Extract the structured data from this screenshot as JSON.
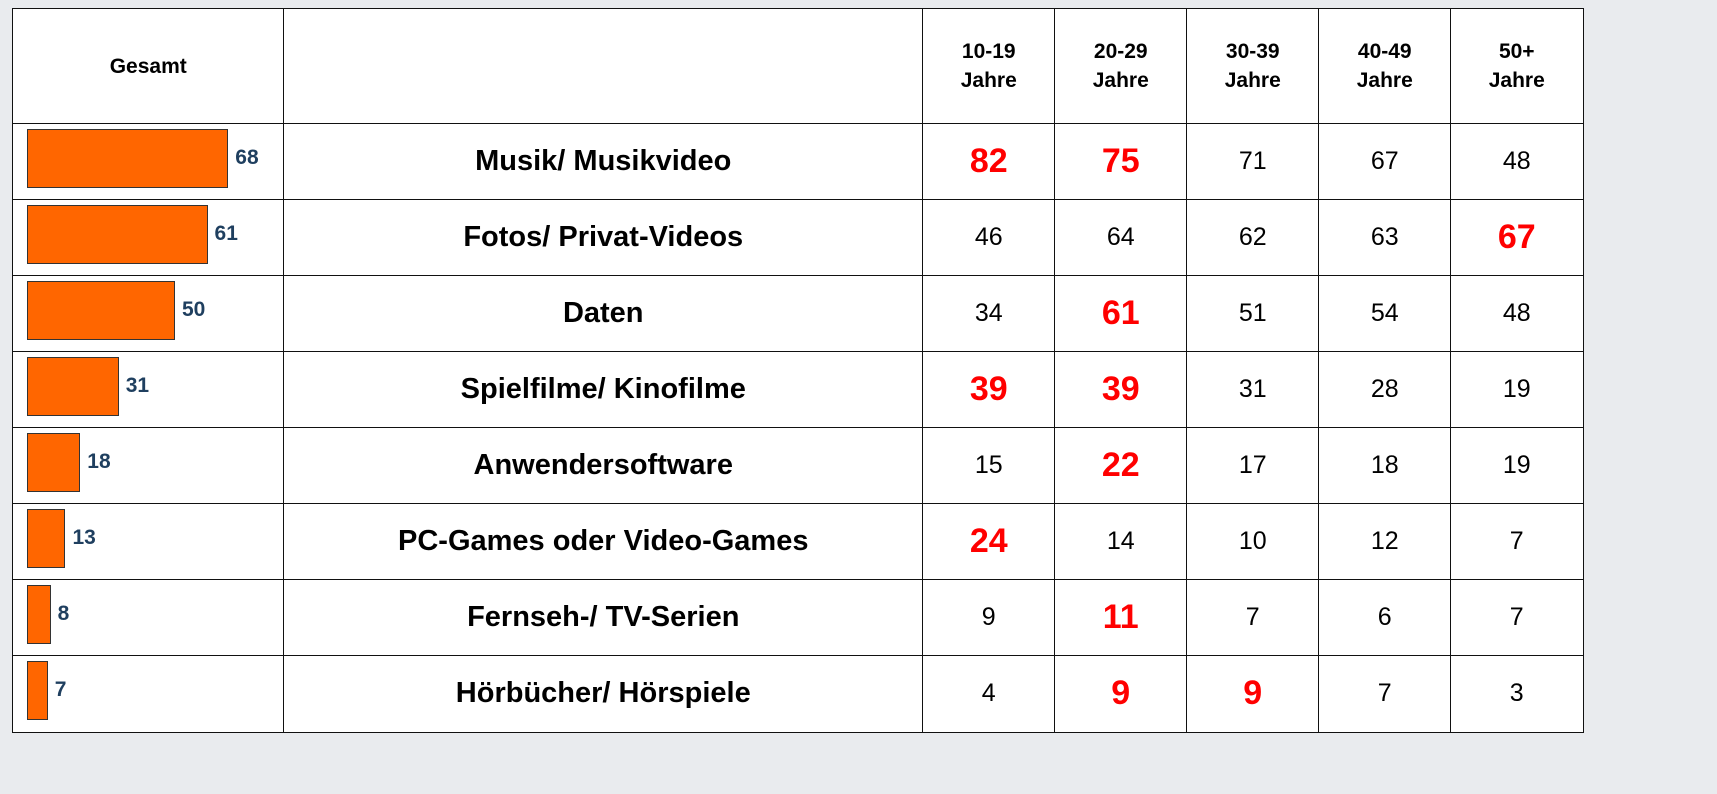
{
  "header": {
    "total": "Gesamt",
    "ages": [
      {
        "range": "10-19",
        "unit": "Jahre"
      },
      {
        "range": "20-29",
        "unit": "Jahre"
      },
      {
        "range": "30-39",
        "unit": "Jahre"
      },
      {
        "range": "40-49",
        "unit": "Jahre"
      },
      {
        "range": "50+",
        "unit": "Jahre"
      }
    ]
  },
  "table": {
    "rows": [
      {
        "label": "Musik/ Musikvideo",
        "total": 68,
        "values": [
          82,
          75,
          71,
          67,
          48
        ],
        "highlight": [
          true,
          true,
          false,
          false,
          false
        ]
      },
      {
        "label": "Fotos/ Privat-Videos",
        "total": 61,
        "values": [
          46,
          64,
          62,
          63,
          67
        ],
        "highlight": [
          false,
          false,
          false,
          false,
          true
        ]
      },
      {
        "label": "Daten",
        "total": 50,
        "values": [
          34,
          61,
          51,
          54,
          48
        ],
        "highlight": [
          false,
          true,
          false,
          false,
          false
        ]
      },
      {
        "label": "Spielfilme/ Kinofilme",
        "total": 31,
        "values": [
          39,
          39,
          31,
          28,
          19
        ],
        "highlight": [
          true,
          true,
          false,
          false,
          false
        ]
      },
      {
        "label": "Anwendersoftware",
        "total": 18,
        "values": [
          15,
          22,
          17,
          18,
          19
        ],
        "highlight": [
          false,
          true,
          false,
          false,
          false
        ]
      },
      {
        "label": "PC-Games oder Video-Games",
        "total": 13,
        "values": [
          24,
          14,
          10,
          12,
          7
        ],
        "highlight": [
          true,
          false,
          false,
          false,
          false
        ]
      },
      {
        "label": "Fernseh-/  TV-Serien",
        "total": 8,
        "values": [
          9,
          11,
          7,
          6,
          7
        ],
        "highlight": [
          false,
          true,
          false,
          false,
          false
        ]
      },
      {
        "label": "Hörbücher/ Hörspiele",
        "total": 7,
        "values": [
          4,
          9,
          9,
          7,
          3
        ],
        "highlight": [
          false,
          true,
          true,
          false,
          false
        ]
      }
    ]
  }
}
